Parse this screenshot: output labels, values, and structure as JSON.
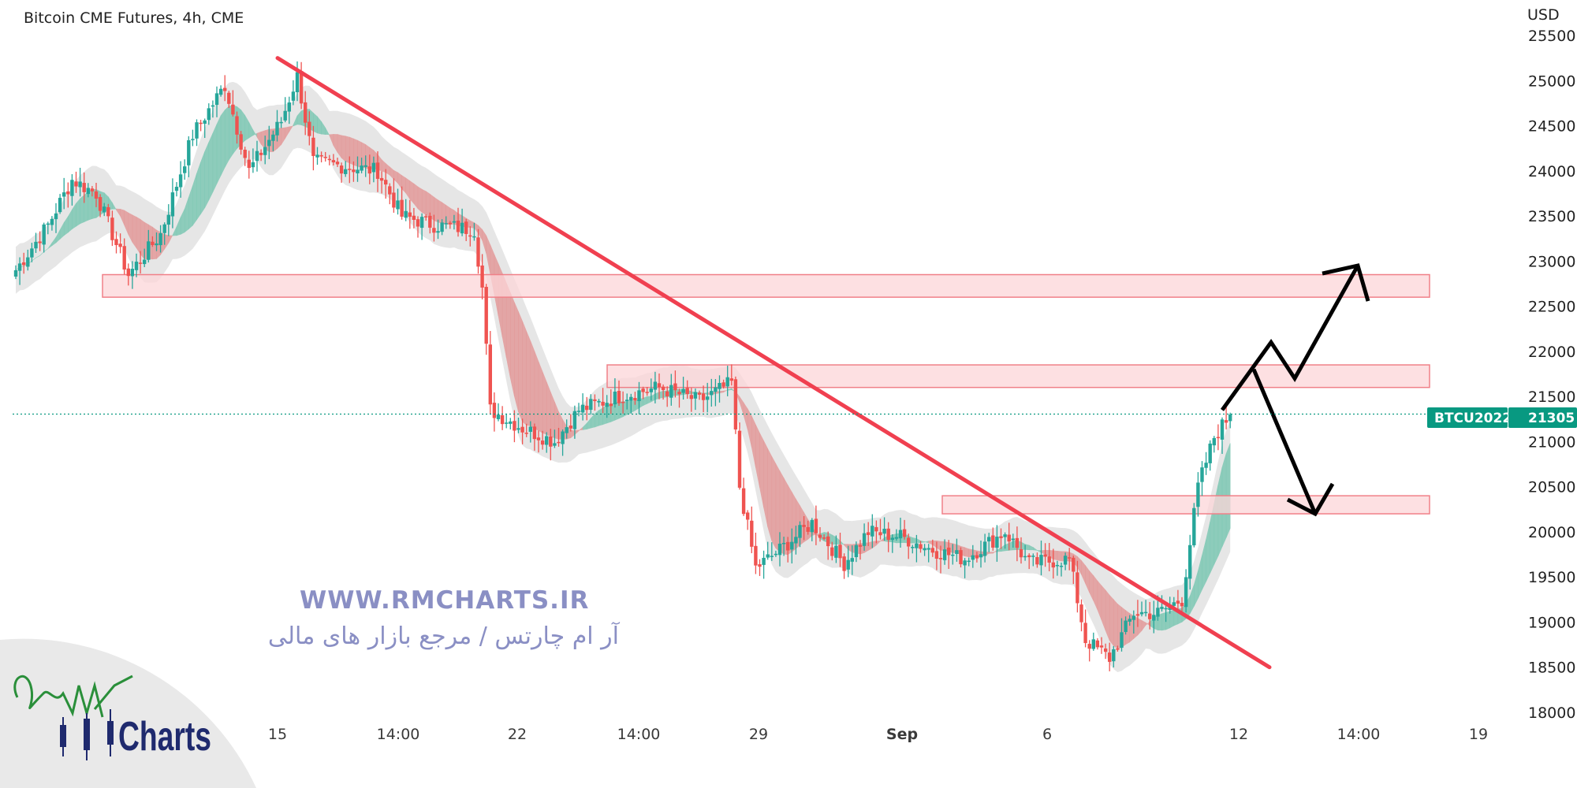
{
  "chart_title": "Bitcoin CME Futures, 4h, CME",
  "currency": "USD",
  "watermark": {
    "url": "WWW.RMCHARTS.IR",
    "tagline": "آر ام چارتس / مرجع بازار های مالی",
    "logo_text": "Charts"
  },
  "price_badge": {
    "symbol": "BTCU2022",
    "price": "21305"
  },
  "colors": {
    "up": "#26a69a",
    "down": "#ef5350",
    "trendline": "#f04050",
    "zone_fill": "#fcd5d8",
    "zone_stroke": "#f08088",
    "ribbon_bull": "#7ec8b4",
    "ribbon_bear": "#e39a9a",
    "ribbon_shadow": "#dcdcdc",
    "badge": "#089981"
  },
  "chart_data": {
    "type": "candlestick",
    "title": "Bitcoin CME Futures, 4h, CME",
    "ylabel": "USD",
    "ylim": [
      18000,
      25700
    ],
    "y_ticks": [
      25500,
      25000,
      24500,
      24000,
      23500,
      23000,
      22500,
      22000,
      21500,
      21000,
      20500,
      20000,
      19500,
      19000,
      18500,
      18000
    ],
    "x_ticks": [
      "15",
      "14:00",
      "22",
      "14:00",
      "29",
      "Sep",
      "6",
      "12",
      "14:00",
      "19"
    ],
    "last_price": 21305,
    "ohlc_path": [
      {
        "i": 0,
        "c": 22900
      },
      {
        "i": 8,
        "c": 23400
      },
      {
        "i": 14,
        "c": 23900
      },
      {
        "i": 20,
        "c": 23750
      },
      {
        "i": 28,
        "c": 22850
      },
      {
        "i": 36,
        "c": 23300
      },
      {
        "i": 44,
        "c": 24400
      },
      {
        "i": 52,
        "c": 24950
      },
      {
        "i": 58,
        "c": 24000
      },
      {
        "i": 66,
        "c": 24550
      },
      {
        "i": 70,
        "c": 25050
      },
      {
        "i": 74,
        "c": 24100
      },
      {
        "i": 82,
        "c": 24050
      },
      {
        "i": 90,
        "c": 24000
      },
      {
        "i": 96,
        "c": 23500
      },
      {
        "i": 104,
        "c": 23400
      },
      {
        "i": 114,
        "c": 23350
      },
      {
        "i": 116,
        "c": 22700
      },
      {
        "i": 118,
        "c": 21350
      },
      {
        "i": 126,
        "c": 21150
      },
      {
        "i": 134,
        "c": 21000
      },
      {
        "i": 140,
        "c": 21350
      },
      {
        "i": 150,
        "c": 21500
      },
      {
        "i": 160,
        "c": 21600
      },
      {
        "i": 170,
        "c": 21450
      },
      {
        "i": 178,
        "c": 21650
      },
      {
        "i": 180,
        "c": 20500
      },
      {
        "i": 184,
        "c": 19600
      },
      {
        "i": 190,
        "c": 19800
      },
      {
        "i": 198,
        "c": 20100
      },
      {
        "i": 206,
        "c": 19650
      },
      {
        "i": 212,
        "c": 20000
      },
      {
        "i": 220,
        "c": 19950
      },
      {
        "i": 228,
        "c": 19800
      },
      {
        "i": 236,
        "c": 19700
      },
      {
        "i": 246,
        "c": 20000
      },
      {
        "i": 252,
        "c": 19650
      },
      {
        "i": 262,
        "c": 19700
      },
      {
        "i": 266,
        "c": 18800
      },
      {
        "i": 272,
        "c": 18600
      },
      {
        "i": 278,
        "c": 19100
      },
      {
        "i": 284,
        "c": 19100
      },
      {
        "i": 290,
        "c": 19250
      },
      {
        "i": 294,
        "c": 20500
      },
      {
        "i": 298,
        "c": 21050
      },
      {
        "i": 302,
        "c": 21300
      }
    ],
    "resistance_support_zones": [
      {
        "from": "15",
        "low": 22600,
        "high": 22850
      },
      {
        "from": "22",
        "low": 21600,
        "high": 21850
      },
      {
        "from": "Sep",
        "low": 20200,
        "high": 20400
      }
    ],
    "trendline": [
      {
        "x": "15",
        "y": 25250
      },
      {
        "x": "12",
        "y": 18500
      }
    ],
    "projection_arrows": [
      {
        "path": "up",
        "points": [
          21350,
          22100,
          21700,
          22950
        ]
      },
      {
        "path": "down",
        "points": [
          21800,
          20200
        ]
      }
    ]
  }
}
